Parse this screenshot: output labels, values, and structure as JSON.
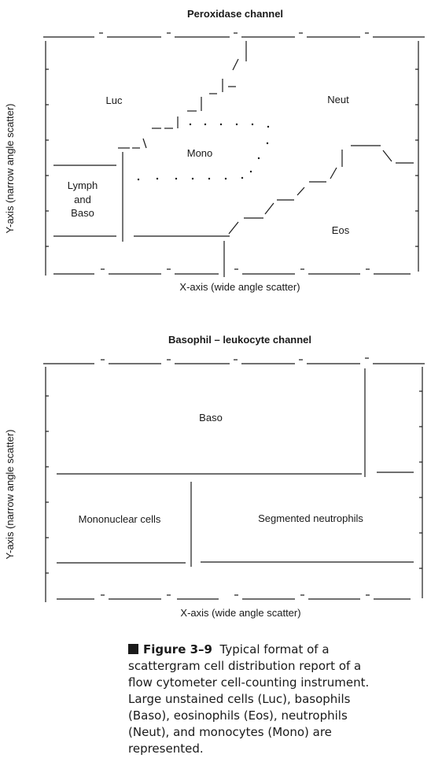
{
  "top_chart": {
    "title": "Peroxidase channel",
    "x_label": "X-axis (wide angle scatter)",
    "y_label": "Y-axis (narrow angle scatter)",
    "regions": {
      "luc": "Luc",
      "neut": "Neut",
      "mono": "Mono",
      "lymph_line1": "Lymph",
      "lymph_line2": "and",
      "lymph_line3": "Baso",
      "eos": "Eos"
    }
  },
  "bottom_chart": {
    "title": "Basophil – leukocyte channel",
    "x_label": "X-axis (wide angle scatter)",
    "y_label": "Y-axis (narrow angle scatter)",
    "regions": {
      "baso": "Baso",
      "mononuclear": "Mononuclear cells",
      "segmented": "Segmented neutrophils"
    }
  },
  "caption": {
    "figure_label": "Figure 3–9",
    "text": "Typical format of a scattergram cell distribution report of a flow cytometer cell-counting instrument. Large unstained cells (Luc), basophils (Baso), eosinophils (Eos), neutrophils (Neut), and monocytes (Mono) are represented."
  }
}
